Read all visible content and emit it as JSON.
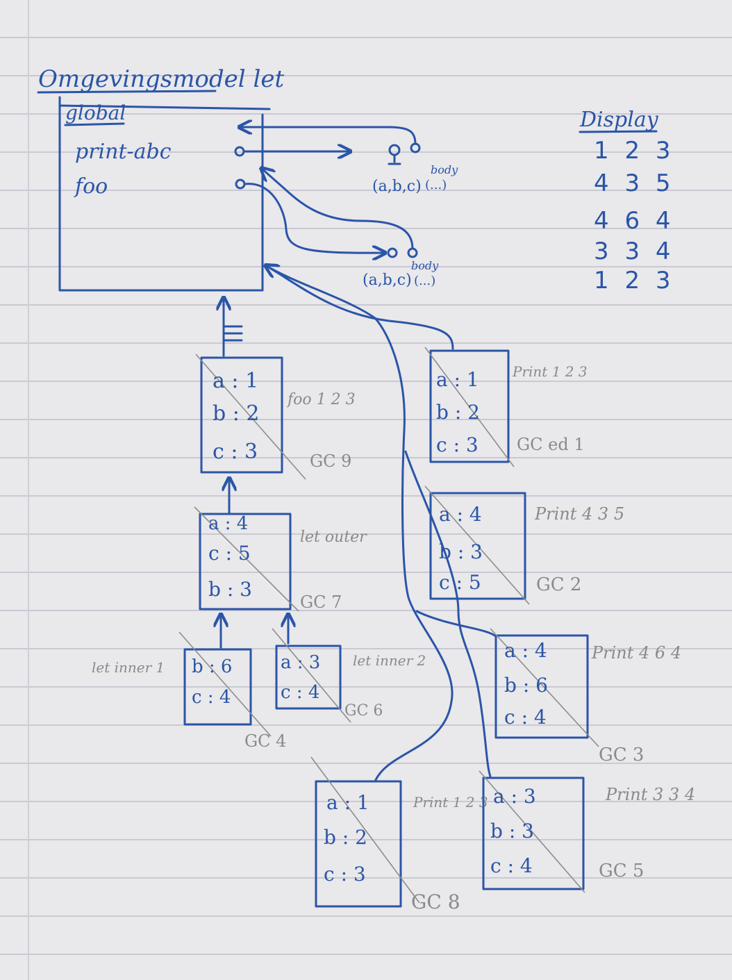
{
  "title": "Omgevingsmodel let",
  "global_frame": {
    "label": "global",
    "bindings": [
      "print-abc",
      "foo"
    ]
  },
  "closures": [
    {
      "params": "(a,b,c)",
      "body": "body",
      "body_dots": "(...)"
    },
    {
      "params": "(a,b,c)",
      "body": "body",
      "body_dots": "(...)"
    }
  ],
  "display": {
    "label": "Display",
    "lines": [
      "1 2 3",
      "4 3 5",
      "4 6 4",
      "3 3 4",
      "1 2 3"
    ]
  },
  "frames": [
    {
      "rows": [
        "a : 1",
        "b : 2",
        "c : 3"
      ],
      "label": "foo 1 2 3",
      "gc": "GC 9"
    },
    {
      "rows": [
        "a : 4",
        "c : 5",
        "b : 3"
      ],
      "label": "let outer",
      "gc": "GC 7"
    },
    {
      "rows": [
        "b : 6",
        "c : 4"
      ],
      "label": "let inner 1",
      "gc": "GC 4"
    },
    {
      "rows": [
        "a : 3",
        "c : 4"
      ],
      "label": "let inner 2",
      "gc": "GC 6"
    },
    {
      "rows": [
        "a : 1",
        "b : 2",
        "c : 3"
      ],
      "label": "Print 1 2 3",
      "gc": "GC ed 1"
    },
    {
      "rows": [
        "a : 4",
        "b : 3",
        "c : 5"
      ],
      "label": "Print 4 3 5",
      "gc": "GC 2"
    },
    {
      "rows": [
        "a : 4",
        "b : 6",
        "c : 4"
      ],
      "label": "Print 4 6 4",
      "gc": "GC 3"
    },
    {
      "rows": [
        "a : 1",
        "b : 2",
        "c : 3"
      ],
      "label": "Print 1 2 3",
      "gc": "GC 8"
    },
    {
      "rows": [
        "a : 3",
        "b : 3",
        "c : 4"
      ],
      "label": "Print 3 3 4",
      "gc": "GC 5"
    }
  ]
}
